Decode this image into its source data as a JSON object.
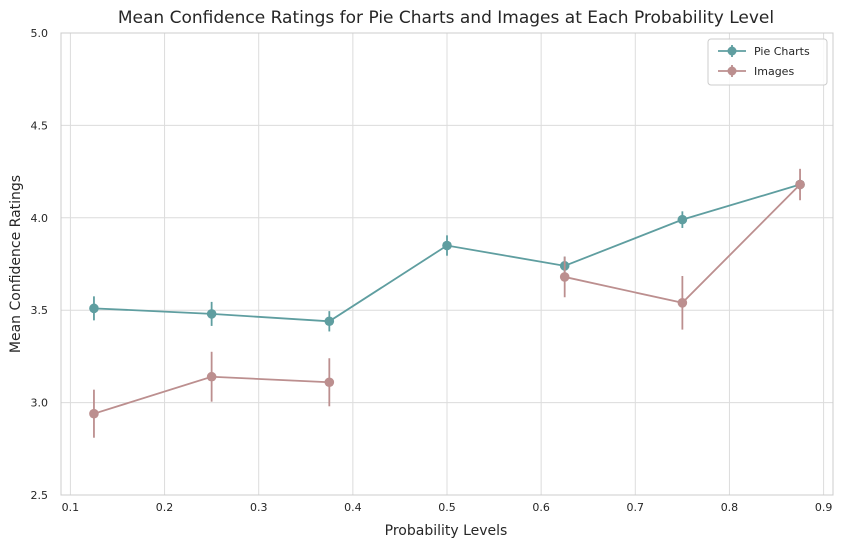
{
  "chart_data": {
    "type": "line",
    "title": "Mean Confidence Ratings for Pie Charts and Images at Each Probability Level",
    "xlabel": "Probability Levels",
    "ylabel": "Mean Confidence Ratings",
    "xlim": [
      0.09,
      0.91
    ],
    "ylim": [
      2.5,
      5.0
    ],
    "xticks": [
      0.1,
      0.2,
      0.3,
      0.4,
      0.5,
      0.6,
      0.7,
      0.8,
      0.9
    ],
    "xtick_labels": [
      "0.1",
      "0.2",
      "0.3",
      "0.4",
      "0.5",
      "0.6",
      "0.7",
      "0.8",
      "0.9"
    ],
    "yticks": [
      2.5,
      3.0,
      3.5,
      4.0,
      4.5,
      5.0
    ],
    "ytick_labels": [
      "2.5",
      "3.0",
      "3.5",
      "4.0",
      "4.5",
      "5.0"
    ],
    "grid": true,
    "legend_position": "top-right",
    "series": [
      {
        "name": "Pie Charts",
        "color": "#5f9ea0",
        "points": [
          {
            "x": 0.125,
            "y": 3.51,
            "err": 0.065
          },
          {
            "x": 0.25,
            "y": 3.48,
            "err": 0.065
          },
          {
            "x": 0.375,
            "y": 3.44,
            "err": 0.055
          },
          {
            "x": 0.5,
            "y": 3.85,
            "err": 0.055
          },
          {
            "x": 0.625,
            "y": 3.74,
            "err": 0.05
          },
          {
            "x": 0.75,
            "y": 3.99,
            "err": 0.045
          },
          {
            "x": 0.875,
            "y": 4.18,
            "err": 0.03
          }
        ]
      },
      {
        "name": "Images",
        "color": "#bc8f8f",
        "points": [
          {
            "x": 0.125,
            "y": 2.94,
            "err": 0.13
          },
          {
            "x": 0.25,
            "y": 3.14,
            "err": 0.135
          },
          {
            "x": 0.375,
            "y": 3.11,
            "err": 0.13
          },
          {
            "x": 0.5,
            "y": null,
            "err": null
          },
          {
            "x": 0.625,
            "y": 3.68,
            "err": 0.11
          },
          {
            "x": 0.75,
            "y": 3.54,
            "err": 0.145
          },
          {
            "x": 0.875,
            "y": 4.18,
            "err": 0.085
          }
        ]
      }
    ]
  }
}
